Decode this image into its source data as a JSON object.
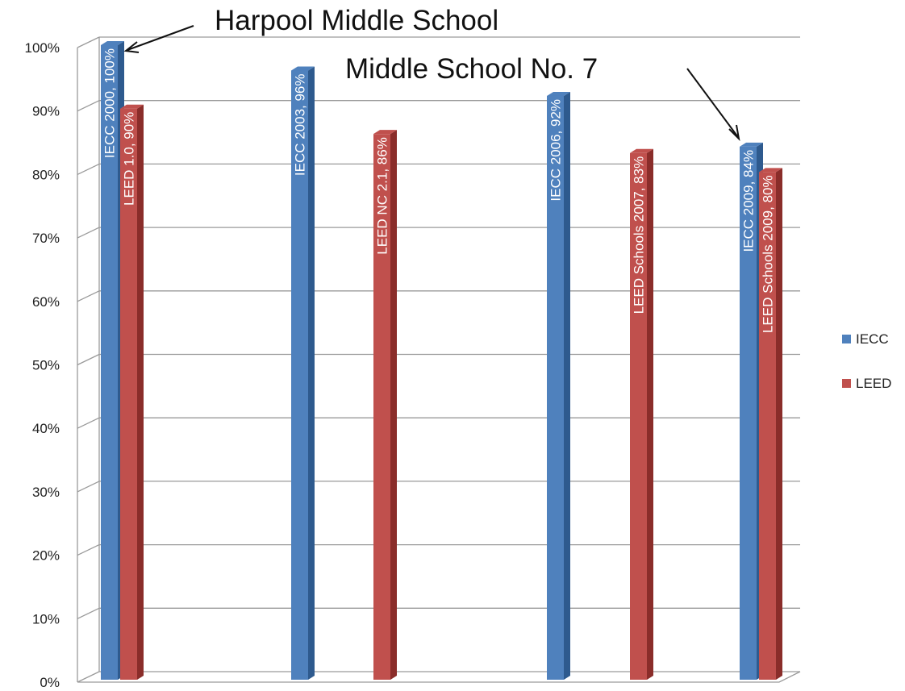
{
  "chart_data": {
    "type": "bar",
    "title": "",
    "xlabel": "",
    "ylabel": "",
    "ylim": [
      0,
      100
    ],
    "y_ticks": [
      "0%",
      "10%",
      "20%",
      "30%",
      "40%",
      "50%",
      "60%",
      "70%",
      "80%",
      "90%",
      "100%"
    ],
    "grid": true,
    "legend_position": "right",
    "three_d": true,
    "bars": [
      {
        "series": "IECC",
        "label": "IECC 2000, 100%",
        "value": 100
      },
      {
        "series": "LEED",
        "label": "LEED 1.0, 90%",
        "value": 90
      },
      {
        "series": "IECC",
        "label": "IECC 2003, 96%",
        "value": 96
      },
      {
        "series": "LEED",
        "label": "LEED  NC 2.1, 86%",
        "value": 86
      },
      {
        "series": "IECC",
        "label": "IECC 2006, 92%",
        "value": 92
      },
      {
        "series": "LEED",
        "label": "LEED Schools 2007, 83%",
        "value": 83
      },
      {
        "series": "IECC",
        "label": "IECC 2009, 84%",
        "value": 84
      },
      {
        "series": "LEED",
        "label": "LEED Schools 2009, 80%",
        "value": 80
      }
    ],
    "legend": [
      {
        "name": "IECC",
        "color": "#4F81BD"
      },
      {
        "name": "LEED",
        "color": "#C0504D"
      }
    ],
    "annotations": [
      {
        "text": "Harpool Middle School",
        "points_to": "IECC 2000, 100%"
      },
      {
        "text": "Middle School No. 7",
        "points_to": "IECC 2009, 84%"
      }
    ]
  },
  "colors": {
    "IECC": "#4F81BD",
    "IECC_side": "#2E5A8E",
    "LEED": "#C0504D",
    "LEED_side": "#8A2D2A",
    "grid": "#9a9a9a"
  }
}
